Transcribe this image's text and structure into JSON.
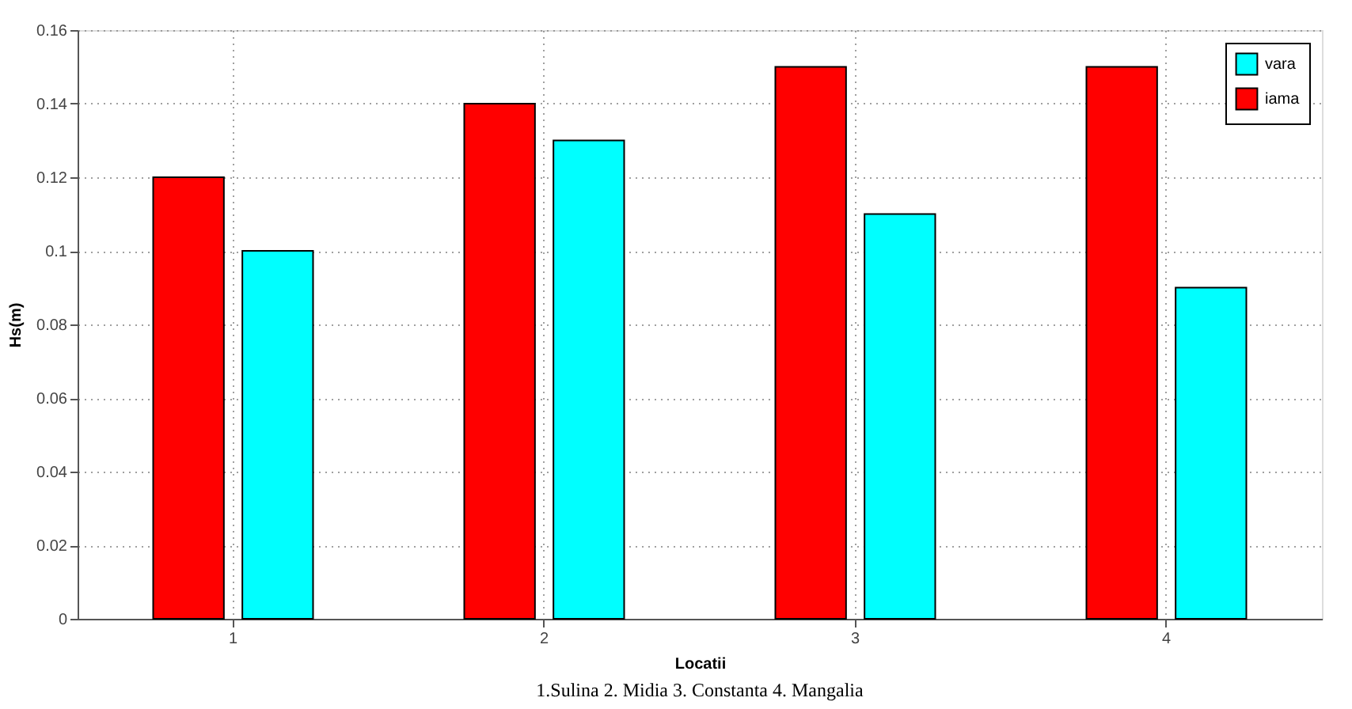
{
  "chart_data": {
    "type": "bar",
    "xlabel": "Locatii",
    "ylabel": "Hs(m)",
    "categories": [
      "1",
      "2",
      "3",
      "4"
    ],
    "series": [
      {
        "name": "iama",
        "color": "#ff0000",
        "values": [
          0.12,
          0.14,
          0.15,
          0.15
        ]
      },
      {
        "name": "vara",
        "color": "#00ffff",
        "values": [
          0.1,
          0.13,
          0.11,
          0.09
        ]
      }
    ],
    "ylim": [
      0,
      0.16
    ],
    "yticks": [
      0,
      0.02,
      0.04,
      0.06,
      0.08,
      0.1,
      0.12,
      0.14,
      0.16
    ],
    "grid": true,
    "legend": "top right",
    "annotations": [
      "1.Sulina   2. Midia   3. Constanta   4. Mangalia"
    ]
  }
}
